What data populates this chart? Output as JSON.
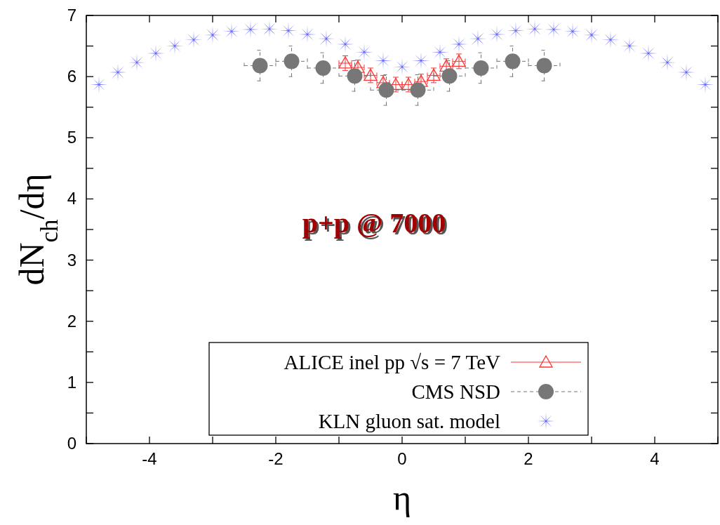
{
  "chart_data": {
    "type": "scatter",
    "xlabel": "η",
    "ylabel": "dN$_{ch}$/dη",
    "annotations": [
      "p+p @ 7000"
    ],
    "xlim": [
      -5,
      5
    ],
    "xticks": [
      {
        "value": -5,
        "label": null
      },
      -4,
      {
        "value": -3,
        "label": null
      },
      -2,
      {
        "value": -1,
        "label": null
      },
      0,
      {
        "value": 1,
        "label": null
      },
      2,
      {
        "value": 3,
        "label": null
      },
      4,
      {
        "value": 5,
        "label": null
      }
    ],
    "ylim": [
      0,
      7
    ],
    "yticks": [
      0,
      {
        "value": 0.5,
        "label": null
      },
      1,
      {
        "value": 1.5,
        "label": null
      },
      2,
      {
        "value": 2.5,
        "label": null
      },
      3,
      {
        "value": 3.5,
        "label": null
      },
      4,
      {
        "value": 4.5,
        "label": null
      },
      5,
      {
        "value": 5.5,
        "label": null
      },
      6,
      {
        "value": 6.5,
        "label": null
      },
      7
    ],
    "grid": false,
    "legend": "bottom",
    "series": [
      {
        "name": "ALICE inel pp √s = 7 TeV",
        "color": "#ff3333",
        "marker": "triangle",
        "x": [
          -0.9,
          -0.7,
          -0.5,
          -0.3,
          -0.1,
          0.1,
          0.3,
          0.5,
          0.7,
          0.9
        ],
        "values": [
          6.22,
          6.15,
          6.02,
          5.9,
          5.87,
          5.87,
          5.92,
          6.02,
          6.17,
          6.25
        ],
        "errors": [
          0.12,
          0.12,
          0.12,
          0.12,
          0.12,
          0.12,
          0.12,
          0.12,
          0.12,
          0.12
        ],
        "xerrors": [
          0.1,
          0.1,
          0.1,
          0.1,
          0.1,
          0.1,
          0.1,
          0.1,
          0.1,
          0.1
        ]
      },
      {
        "name": "CMS NSD",
        "color": "#777777",
        "marker": "circle",
        "line_style": "dashed",
        "x": [
          -2.25,
          -1.75,
          -1.25,
          -0.75,
          -0.25,
          0.25,
          0.75,
          1.25,
          1.75,
          2.25
        ],
        "values": [
          6.18,
          6.25,
          6.14,
          6.01,
          5.78,
          5.78,
          6.01,
          6.14,
          6.25,
          6.18
        ],
        "errors": [
          0.25,
          0.25,
          0.25,
          0.25,
          0.25,
          0.25,
          0.25,
          0.25,
          0.25,
          0.25
        ],
        "xerrors": [
          0.25,
          0.25,
          0.25,
          0.25,
          0.25,
          0.25,
          0.25,
          0.25,
          0.25,
          0.25
        ]
      },
      {
        "name": "KLN gluon sat. model",
        "color": "#3333ff",
        "marker": "cross",
        "x": [
          -4.8,
          -4.5,
          -4.2,
          -3.9,
          -3.6,
          -3.3,
          -3.0,
          -2.7,
          -2.4,
          -2.1,
          -1.8,
          -1.5,
          -1.2,
          -0.9,
          -0.6,
          -0.3,
          0,
          0.3,
          0.6,
          0.9,
          1.2,
          1.5,
          1.8,
          2.1,
          2.4,
          2.7,
          3.0,
          3.3,
          3.6,
          3.9,
          4.2,
          4.5,
          4.8
        ],
        "values": [
          5.87,
          6.07,
          6.23,
          6.38,
          6.5,
          6.6,
          6.68,
          6.74,
          6.77,
          6.78,
          6.75,
          6.69,
          6.62,
          6.53,
          6.4,
          6.26,
          6.16,
          6.26,
          6.4,
          6.53,
          6.62,
          6.69,
          6.75,
          6.78,
          6.77,
          6.74,
          6.68,
          6.6,
          6.5,
          6.38,
          6.23,
          6.07,
          5.87
        ]
      }
    ]
  }
}
